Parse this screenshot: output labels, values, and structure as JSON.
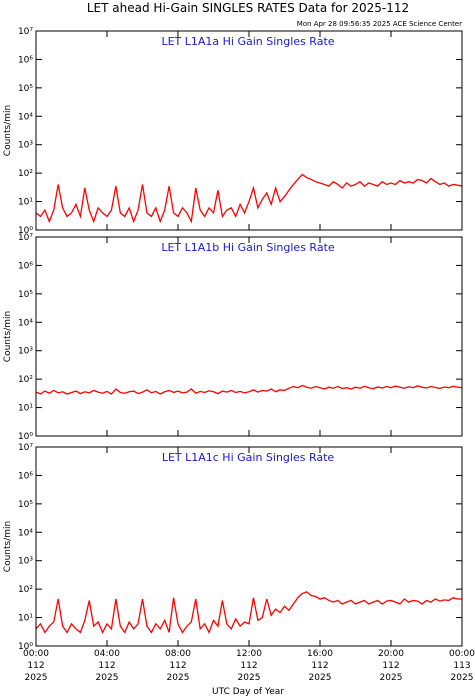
{
  "title": "LET ahead Hi-Gain SINGLES RATES Data for 2025-112",
  "subtitle": "Mon Apr 28 09:56:35 2025 ACE Science Center",
  "xlabel": "UTC Day of Year",
  "xlim": [
    0,
    24
  ],
  "xticks": [
    {
      "value": 0,
      "label": "00:00\n112\n2025"
    },
    {
      "value": 4,
      "label": "04:00\n112\n2025"
    },
    {
      "value": 8,
      "label": "08:00\n112\n2025"
    },
    {
      "value": 12,
      "label": "12:00\n112\n2025"
    },
    {
      "value": 16,
      "label": "16:00\n112\n2025"
    },
    {
      "value": 20,
      "label": "20:00\n112\n2025"
    },
    {
      "value": 24,
      "label": "00:00\n113\n2025"
    }
  ],
  "x": [
    0,
    0.25,
    0.5,
    0.75,
    1,
    1.25,
    1.5,
    1.75,
    2,
    2.25,
    2.5,
    2.75,
    3,
    3.25,
    3.5,
    3.75,
    4,
    4.25,
    4.5,
    4.75,
    5,
    5.25,
    5.5,
    5.75,
    6,
    6.25,
    6.5,
    6.75,
    7,
    7.25,
    7.5,
    7.75,
    8,
    8.25,
    8.5,
    8.75,
    9,
    9.25,
    9.5,
    9.75,
    10,
    10.25,
    10.5,
    10.75,
    11,
    11.25,
    11.5,
    11.75,
    12,
    12.25,
    12.5,
    12.75,
    13,
    13.25,
    13.5,
    13.75,
    14,
    14.25,
    14.5,
    14.75,
    15,
    15.25,
    15.5,
    15.75,
    16,
    16.25,
    16.5,
    16.75,
    17,
    17.25,
    17.5,
    17.75,
    18,
    18.25,
    18.5,
    18.75,
    19,
    19.25,
    19.5,
    19.75,
    20,
    20.25,
    20.5,
    20.75,
    21,
    21.25,
    21.5,
    21.75,
    22,
    22.25,
    22.5,
    22.75,
    23,
    23.25,
    23.5,
    23.75,
    24
  ],
  "chart_data": [
    {
      "type": "line",
      "title": "LET L1A1a Hi Gain Singles Rate",
      "ylabel": "Counts/min",
      "log_scale": true,
      "ylim": [
        1,
        10000000
      ],
      "yticks": [
        {
          "value": 1,
          "label": "10⁰"
        },
        {
          "value": 10,
          "label": "10¹"
        },
        {
          "value": 100,
          "label": "10²"
        },
        {
          "value": 1000,
          "label": "10³"
        },
        {
          "value": 10000,
          "label": "10⁴"
        },
        {
          "value": 100000,
          "label": "10⁵"
        },
        {
          "value": 1000000,
          "label": "10⁶"
        },
        {
          "value": 10000000,
          "label": "10⁷"
        }
      ],
      "series": [
        {
          "color": "#ff0000",
          "values": [
            4,
            3,
            5,
            2,
            5,
            40,
            6,
            3,
            4,
            8,
            3,
            30,
            5,
            2,
            6,
            4,
            3,
            5,
            35,
            4,
            3,
            6,
            2,
            5,
            40,
            4,
            3,
            6,
            2,
            5,
            35,
            4,
            3,
            6,
            4,
            2,
            30,
            5,
            3,
            6,
            4,
            25,
            3,
            5,
            6,
            3,
            8,
            4,
            10,
            30,
            6,
            12,
            20,
            8,
            30,
            10,
            15,
            25,
            40,
            60,
            90,
            70,
            60,
            50,
            45,
            40,
            35,
            50,
            40,
            30,
            45,
            35,
            40,
            50,
            35,
            45,
            40,
            35,
            50,
            40,
            45,
            40,
            55,
            45,
            50,
            45,
            60,
            55,
            45,
            65,
            50,
            40,
            45,
            35,
            40,
            38,
            35
          ]
        }
      ]
    },
    {
      "type": "line",
      "title": "LET L1A1b Hi Gain Singles Rate",
      "ylabel": "Counts/min",
      "log_scale": true,
      "ylim": [
        1,
        10000000
      ],
      "yticks": [
        {
          "value": 1,
          "label": "10⁰"
        },
        {
          "value": 10,
          "label": "10¹"
        },
        {
          "value": 100,
          "label": "10²"
        },
        {
          "value": 1000,
          "label": "10³"
        },
        {
          "value": 10000,
          "label": "10⁴"
        },
        {
          "value": 100000,
          "label": "10⁵"
        },
        {
          "value": 1000000,
          "label": "10⁶"
        },
        {
          "value": 10000000,
          "label": "10⁷"
        }
      ],
      "series": [
        {
          "color": "#ff0000",
          "values": [
            35,
            30,
            38,
            32,
            40,
            33,
            36,
            30,
            34,
            38,
            31,
            36,
            33,
            40,
            35,
            32,
            37,
            30,
            45,
            34,
            32,
            36,
            38,
            31,
            35,
            42,
            33,
            37,
            30,
            36,
            40,
            34,
            38,
            33,
            35,
            45,
            32,
            37,
            34,
            39,
            36,
            31,
            38,
            35,
            40,
            34,
            37,
            33,
            36,
            42,
            35,
            40,
            38,
            45,
            36,
            42,
            40,
            48,
            55,
            50,
            60,
            52,
            48,
            55,
            50,
            45,
            52,
            48,
            55,
            47,
            50,
            45,
            52,
            48,
            56,
            50,
            46,
            53,
            49,
            55,
            50,
            57,
            52,
            48,
            54,
            50,
            58,
            52,
            49,
            55,
            51,
            47,
            53,
            50,
            56,
            52,
            50
          ]
        }
      ]
    },
    {
      "type": "line",
      "title": "LET L1A1c Hi Gain Singles Rate",
      "ylabel": "Counts/min",
      "log_scale": true,
      "ylim": [
        1,
        10000000
      ],
      "yticks": [
        {
          "value": 1,
          "label": "10⁰"
        },
        {
          "value": 10,
          "label": "10¹"
        },
        {
          "value": 100,
          "label": "10²"
        },
        {
          "value": 1000,
          "label": "10³"
        },
        {
          "value": 10000,
          "label": "10⁴"
        },
        {
          "value": 100000,
          "label": "10⁵"
        },
        {
          "value": 1000000,
          "label": "10⁶"
        },
        {
          "value": 10000000,
          "label": "10⁷"
        }
      ],
      "series": [
        {
          "color": "#ff0000",
          "values": [
            4,
            6,
            3,
            5,
            7,
            45,
            5,
            3,
            6,
            4,
            3,
            8,
            40,
            5,
            7,
            3,
            6,
            4,
            45,
            5,
            3,
            7,
            4,
            6,
            45,
            5,
            3,
            6,
            4,
            8,
            3,
            50,
            6,
            3,
            5,
            7,
            45,
            4,
            6,
            3,
            8,
            5,
            40,
            6,
            4,
            9,
            5,
            7,
            6,
            50,
            8,
            10,
            45,
            12,
            20,
            15,
            25,
            18,
            30,
            50,
            70,
            80,
            60,
            55,
            45,
            50,
            40,
            35,
            40,
            30,
            35,
            40,
            30,
            35,
            40,
            30,
            35,
            40,
            30,
            38,
            40,
            35,
            30,
            45,
            35,
            40,
            38,
            30,
            40,
            35,
            45,
            38,
            42,
            40,
            50,
            45,
            45
          ]
        }
      ]
    }
  ]
}
